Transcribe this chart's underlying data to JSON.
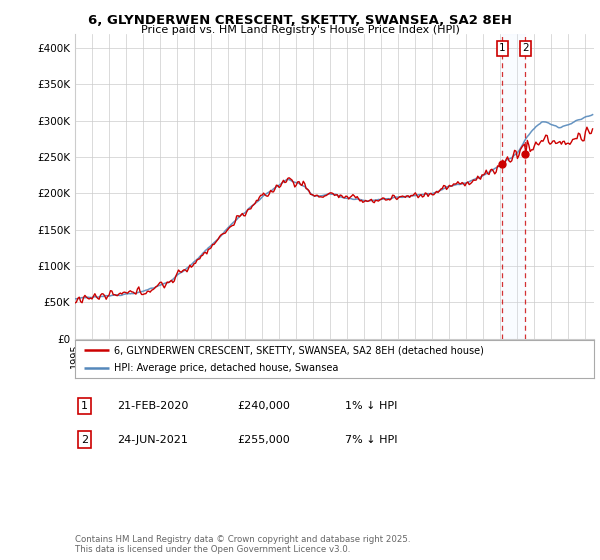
{
  "title_line1": "6, GLYNDERWEN CRESCENT, SKETTY, SWANSEA, SA2 8EH",
  "title_line2": "Price paid vs. HM Land Registry's House Price Index (HPI)",
  "ylabel_ticks": [
    "£0",
    "£50K",
    "£100K",
    "£150K",
    "£200K",
    "£250K",
    "£300K",
    "£350K",
    "£400K"
  ],
  "ytick_values": [
    0,
    50000,
    100000,
    150000,
    200000,
    250000,
    300000,
    350000,
    400000
  ],
  "ylim": [
    0,
    420000
  ],
  "xlim_start": 1995.0,
  "xlim_end": 2025.5,
  "hpi_color": "#5588bb",
  "price_color": "#cc0000",
  "shading_color": "#ddeeff",
  "marker1_date": 2020.12,
  "marker1_price": 240000,
  "marker2_date": 2021.47,
  "marker2_price": 255000,
  "legend_line1": "6, GLYNDERWEN CRESCENT, SKETTY, SWANSEA, SA2 8EH (detached house)",
  "legend_line2": "HPI: Average price, detached house, Swansea",
  "table_row1_num": "1",
  "table_row1_date": "21-FEB-2020",
  "table_row1_price": "£240,000",
  "table_row1_hpi": "1% ↓ HPI",
  "table_row2_num": "2",
  "table_row2_date": "24-JUN-2021",
  "table_row2_price": "£255,000",
  "table_row2_hpi": "7% ↓ HPI",
  "footer": "Contains HM Land Registry data © Crown copyright and database right 2025.\nThis data is licensed under the Open Government Licence v3.0.",
  "bg_color": "#ffffff",
  "grid_color": "#cccccc"
}
